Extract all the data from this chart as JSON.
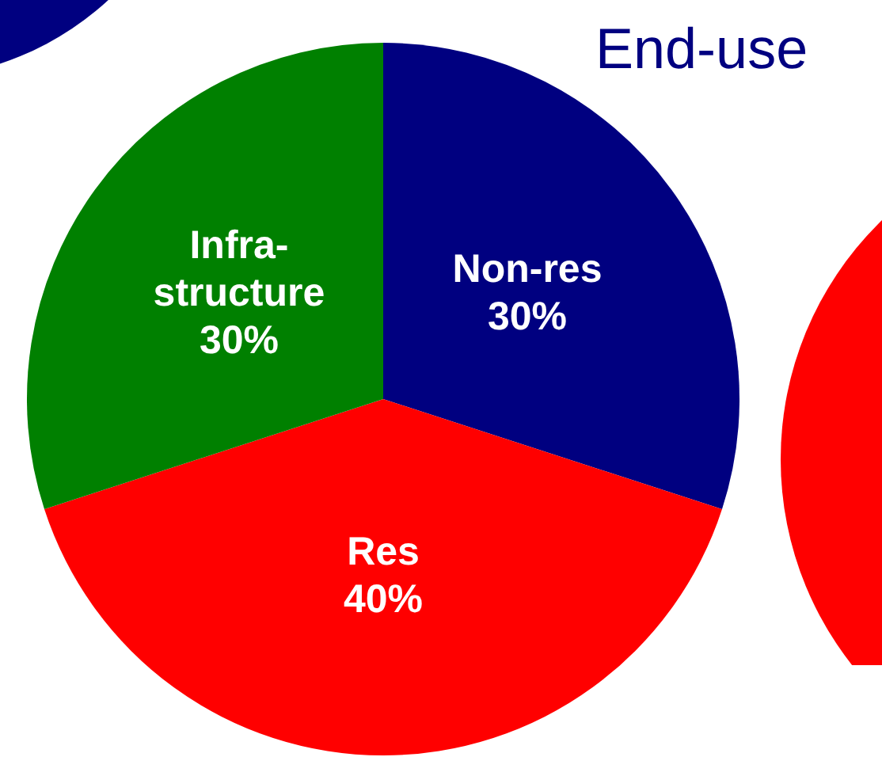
{
  "chart_data": {
    "type": "pie",
    "title": "End-use",
    "categories": [
      "Non-res",
      "Res",
      "Infra-structure"
    ],
    "values": [
      30,
      40,
      30
    ],
    "colors": [
      "#000080",
      "#ff0000",
      "#008000"
    ],
    "value_labels": [
      "30%",
      "40%",
      "30%"
    ],
    "legend": false
  }
}
